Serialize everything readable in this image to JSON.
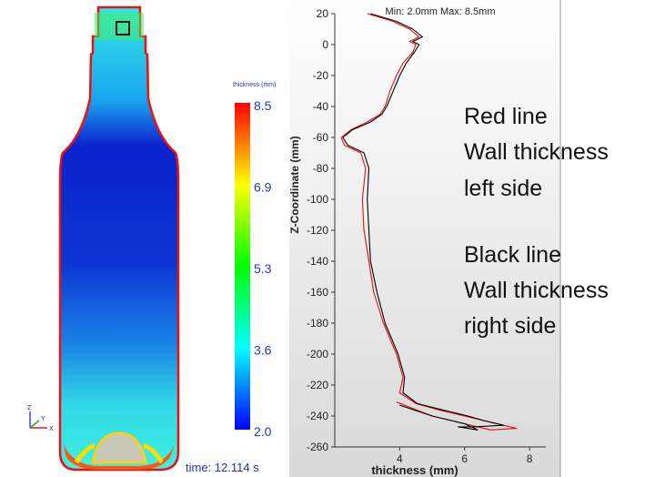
{
  "left_panel": {
    "colorbar_title": "thickness (mm)",
    "colorbar_ticks": [
      "8.5",
      "6.9",
      "5.3",
      "3.6",
      "2.0"
    ],
    "colormap": [
      "#0000ff",
      "#00ffff",
      "#00ff00",
      "#ffff00",
      "#ff0000"
    ],
    "time_label": "time: 12.114 s",
    "axis_triad_labels": [
      "Z",
      "Y",
      "X"
    ]
  },
  "chart_data": {
    "type": "line",
    "title": "Min: 2.0mm  Max: 8.5mm",
    "xlabel": "thickness (mm)",
    "ylabel": "Z-Coordinate (mm)",
    "xlim": [
      2,
      8.5
    ],
    "ylim": [
      -260,
      20
    ],
    "xticks": [
      4,
      6,
      8
    ],
    "yticks": [
      20,
      0,
      -20,
      -40,
      -60,
      -80,
      -100,
      -120,
      -140,
      -160,
      -180,
      -200,
      -220,
      -240,
      -260
    ],
    "grid": false,
    "series": [
      {
        "color": "#e01010",
        "x": [
          3.0,
          3.8,
          4.3,
          4.6,
          4.3,
          4.5,
          4.4,
          4.1,
          3.9,
          3.7,
          3.55,
          3.4,
          3.0,
          2.5,
          2.2,
          2.3,
          2.8,
          2.95,
          2.85,
          2.9,
          3.05,
          3.2,
          3.5,
          3.9,
          4.1,
          4.0,
          4.5,
          5.2,
          6.0,
          6.8,
          7.6,
          6.8,
          6.0,
          5.0,
          3.9
        ],
        "y": [
          20,
          15,
          10,
          5,
          2,
          0,
          -5,
          -12,
          -20,
          -30,
          -40,
          -45,
          -50,
          -55,
          -60,
          -65,
          -70,
          -80,
          -100,
          -120,
          -140,
          -160,
          -180,
          -200,
          -215,
          -225,
          -232,
          -236,
          -240,
          -244,
          -248,
          -249,
          -245,
          -240,
          -231
        ]
      },
      {
        "color": "#000000",
        "x": [
          3.1,
          3.9,
          4.4,
          4.7,
          4.4,
          4.6,
          4.45,
          4.2,
          4.0,
          3.8,
          3.6,
          3.45,
          3.1,
          2.55,
          2.25,
          2.4,
          2.9,
          3.05,
          3.0,
          3.05,
          3.1,
          3.3,
          3.55,
          3.95,
          4.15,
          4.1,
          4.55,
          5.3,
          6.1,
          6.6,
          7.2,
          6.3,
          5.8,
          6.4,
          6.0,
          5.0,
          4.0
        ],
        "y": [
          20,
          15,
          10,
          5,
          2,
          0,
          -5,
          -12,
          -20,
          -30,
          -40,
          -45,
          -50,
          -55,
          -60,
          -65,
          -70,
          -80,
          -100,
          -120,
          -140,
          -160,
          -180,
          -200,
          -215,
          -225,
          -232,
          -236,
          -240,
          -243,
          -246,
          -247,
          -247,
          -249,
          -245,
          -240,
          -233
        ]
      }
    ]
  },
  "annotations": {
    "red_title": "Red line",
    "red_line2": "Wall thickness",
    "red_line3": "left side",
    "black_title": "Black line",
    "black_line2": "Wall thickness",
    "black_line3": "right side"
  }
}
